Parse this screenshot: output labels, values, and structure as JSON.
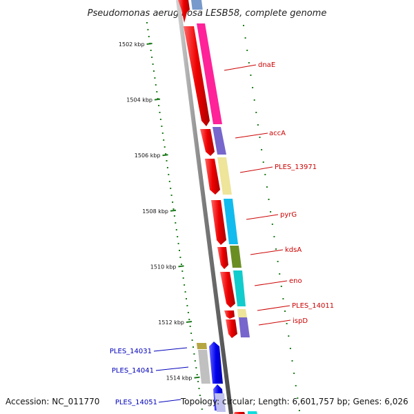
{
  "title": "Pseudomonas aeruginosa LESB58, complete genome",
  "footer": {
    "accession": "Accession: NC_011770",
    "summary": "Topology: circular; Length: 6,601,757 bp; Genes: 6,026"
  },
  "ruler": {
    "color": "#1a7a1a",
    "ticks": [
      "1502 kbp",
      "1504 kbp",
      "1506 kbp",
      "1508 kbp",
      "1510 kbp",
      "1512 kbp",
      "1514 kbp"
    ]
  },
  "forward_labels": {
    "color": "#cc0000",
    "items": [
      "dnaE",
      "accA",
      "PLES_13971",
      "pyrG",
      "kdsA",
      "eno",
      "PLES_14011",
      "ispD"
    ]
  },
  "reverse_labels": {
    "color": "#0000bb",
    "items": [
      "PLES_14031",
      "PLES_14041",
      "PLES_14051"
    ]
  },
  "colors": {
    "backbone": "#8a8a8a",
    "forward_orf": "#ee1111",
    "reverse_orf": "#1111ee",
    "dnaE": "#ff2299",
    "accA": "#7766cc",
    "PLES_13971": "#eee49a",
    "pyrG": "#11bbee",
    "kdsA": "#6b8e23",
    "eno": "#11cccc",
    "PLES_14011": "#eee49a",
    "ispD": "#7766cc",
    "PLES_14031": "#b5a642",
    "PLES_14041": "#c0c0c0",
    "PLES_14051": "#c0c0ee"
  }
}
